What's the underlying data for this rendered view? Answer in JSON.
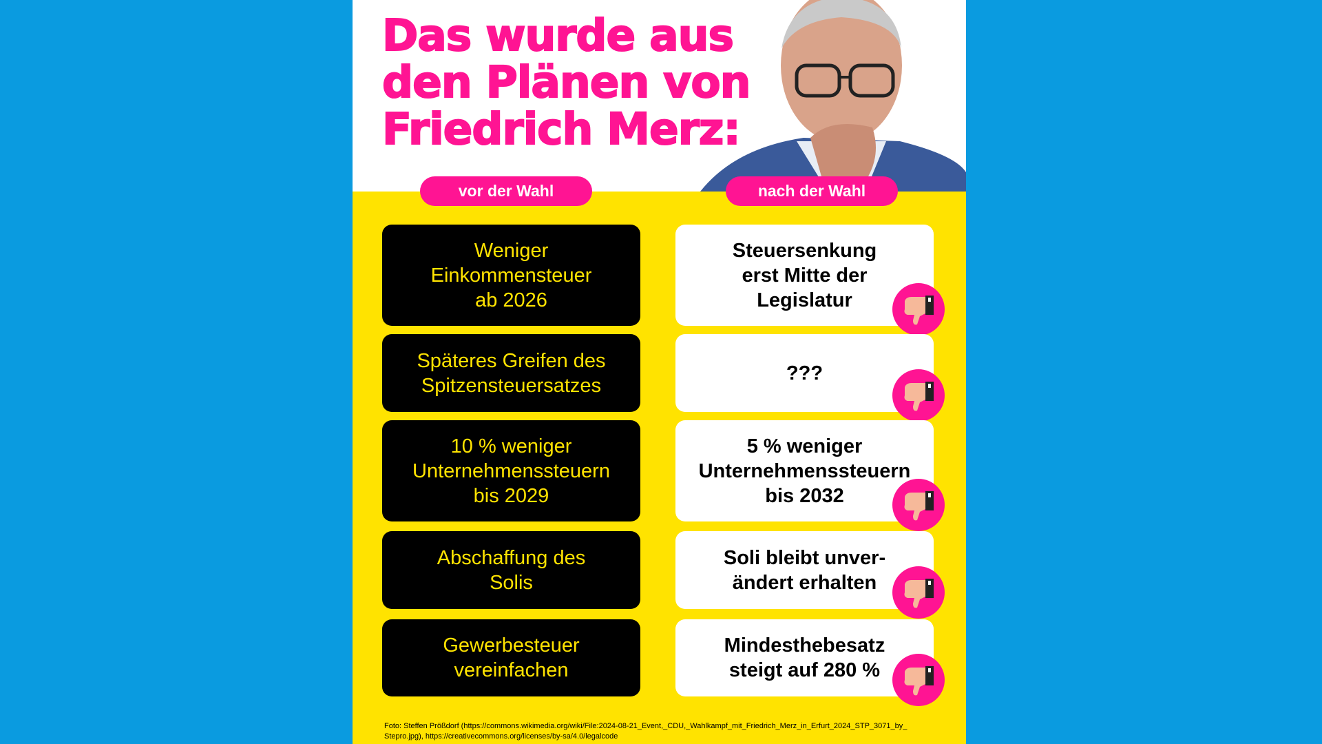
{
  "header": {
    "title": [
      "Das wurde aus",
      "den Plänen von",
      "Friedrich Merz:"
    ]
  },
  "labels": {
    "before": "vor der Wahl",
    "after": "nach der Wahl"
  },
  "rows": [
    {
      "before": [
        "Weniger",
        "Einkommensteuer",
        "ab 2026"
      ],
      "after": [
        "Steuersenkung",
        "erst Mitte der",
        "Legislatur"
      ]
    },
    {
      "before": [
        "Späteres Greifen des",
        "Spitzensteuersatzes"
      ],
      "after": [
        "???"
      ]
    },
    {
      "before": [
        "10 % weniger",
        "Unternehmenssteuern",
        "bis 2029"
      ],
      "after": [
        "5 % weniger",
        "Unternehmenssteuern",
        "bis 2032"
      ]
    },
    {
      "before": [
        "Abschaffung des",
        "Solis"
      ],
      "after": [
        "Soli bleibt unver-",
        "ändert erhalten"
      ]
    },
    {
      "before": [
        "Gewerbesteuer",
        "vereinfachen"
      ],
      "after": [
        "Mindesthebesatz",
        "steigt auf 280 %"
      ]
    }
  ],
  "footer": {
    "credit": [
      "Foto: Steffen Prößdorf (https://commons.wikimedia.org/wiki/File:2024-08-21_Event,_CDU,_Wahlkampf_mit_Friedrich_Merz_in_Erfurt_2024_STP_3071_by_",
      "Stepro.jpg), https://creativecommons.org/licenses/by-sa/4.0/legalcode"
    ]
  }
}
